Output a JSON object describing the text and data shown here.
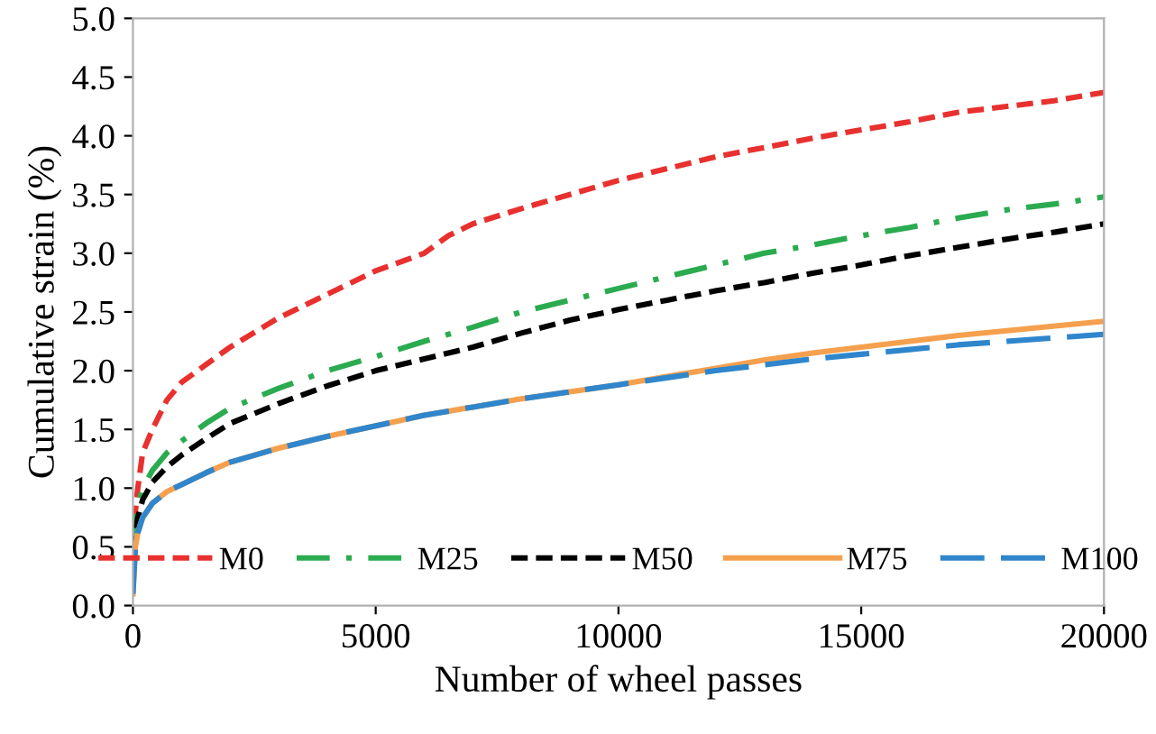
{
  "chart_data": {
    "type": "line",
    "xlabel": "Number of wheel passes",
    "ylabel": "Cumulative strain (%)",
    "x": [
      0,
      50,
      100,
      200,
      400,
      700,
      1000,
      1500,
      2000,
      3000,
      4000,
      5000,
      6000,
      7000,
      8000,
      9000,
      10000,
      11000,
      12000,
      13000,
      14000,
      15000,
      16000,
      17000,
      18000,
      19000,
      20000
    ],
    "series": [
      {
        "name": "M0",
        "color": "#e8312f",
        "line_style": "dashed",
        "x": [
          0,
          50,
          100,
          200,
          400,
          700,
          1000,
          1500,
          2000,
          3000,
          4000,
          5000,
          6000,
          6500,
          7000,
          8000,
          9000,
          10000,
          11000,
          12000,
          13000,
          14000,
          15000,
          16000,
          17000,
          18000,
          19000,
          20000
        ],
        "values": [
          0.5,
          0.8,
          1.0,
          1.3,
          1.5,
          1.75,
          1.9,
          2.05,
          2.2,
          2.45,
          2.65,
          2.85,
          3.0,
          3.15,
          3.25,
          3.38,
          3.5,
          3.62,
          3.72,
          3.82,
          3.9,
          3.98,
          4.05,
          4.12,
          4.2,
          4.25,
          4.3,
          4.37
        ]
      },
      {
        "name": "M25",
        "color": "#2bab4f",
        "line_style": "dashdot",
        "values": [
          0.5,
          0.7,
          0.85,
          1.0,
          1.15,
          1.3,
          1.4,
          1.55,
          1.68,
          1.85,
          2.0,
          2.12,
          2.25,
          2.37,
          2.5,
          2.6,
          2.7,
          2.8,
          2.9,
          3.0,
          3.07,
          3.15,
          3.22,
          3.3,
          3.37,
          3.42,
          3.48
        ]
      },
      {
        "name": "M50",
        "color": "#000000",
        "line_style": "dashed",
        "values": [
          0.45,
          0.6,
          0.75,
          0.9,
          1.05,
          1.18,
          1.28,
          1.42,
          1.55,
          1.72,
          1.87,
          2.0,
          2.1,
          2.2,
          2.32,
          2.43,
          2.52,
          2.6,
          2.68,
          2.75,
          2.83,
          2.9,
          2.98,
          3.05,
          3.12,
          3.18,
          3.25
        ]
      },
      {
        "name": "M75",
        "color": "#f5a04e",
        "line_style": "solid",
        "values": [
          0.1,
          0.5,
          0.62,
          0.75,
          0.87,
          0.97,
          1.03,
          1.13,
          1.22,
          1.34,
          1.44,
          1.53,
          1.62,
          1.69,
          1.76,
          1.82,
          1.88,
          1.95,
          2.02,
          2.09,
          2.15,
          2.2,
          2.25,
          2.3,
          2.34,
          2.38,
          2.42
        ]
      },
      {
        "name": "M100",
        "color": "#2f86cc",
        "line_style": "longdash",
        "values": [
          0.1,
          0.5,
          0.62,
          0.75,
          0.87,
          0.97,
          1.03,
          1.13,
          1.22,
          1.34,
          1.44,
          1.53,
          1.62,
          1.69,
          1.76,
          1.82,
          1.88,
          1.94,
          2.0,
          2.05,
          2.1,
          2.14,
          2.18,
          2.22,
          2.25,
          2.28,
          2.31
        ]
      }
    ],
    "xlim": [
      0,
      20000
    ],
    "xticks": [
      0,
      5000,
      10000,
      15000,
      20000
    ],
    "ylim": [
      0,
      5
    ],
    "yticks": [
      {
        "value": 0,
        "label": "0.0"
      },
      {
        "value": 0.5,
        "label": "0.5"
      },
      {
        "value": 1,
        "label": "1.0"
      },
      {
        "value": 1.5,
        "label": "1.5"
      },
      {
        "value": 2,
        "label": "2.0"
      },
      {
        "value": 2.5,
        "label": "2.5"
      },
      {
        "value": 3,
        "label": "3.0"
      },
      {
        "value": 3.5,
        "label": "3.5"
      },
      {
        "value": 4,
        "label": "4.0"
      },
      {
        "value": 4.5,
        "label": "4.5"
      },
      {
        "value": 5,
        "label": "5.0"
      }
    ],
    "grid": false,
    "legend": "bottom"
  }
}
